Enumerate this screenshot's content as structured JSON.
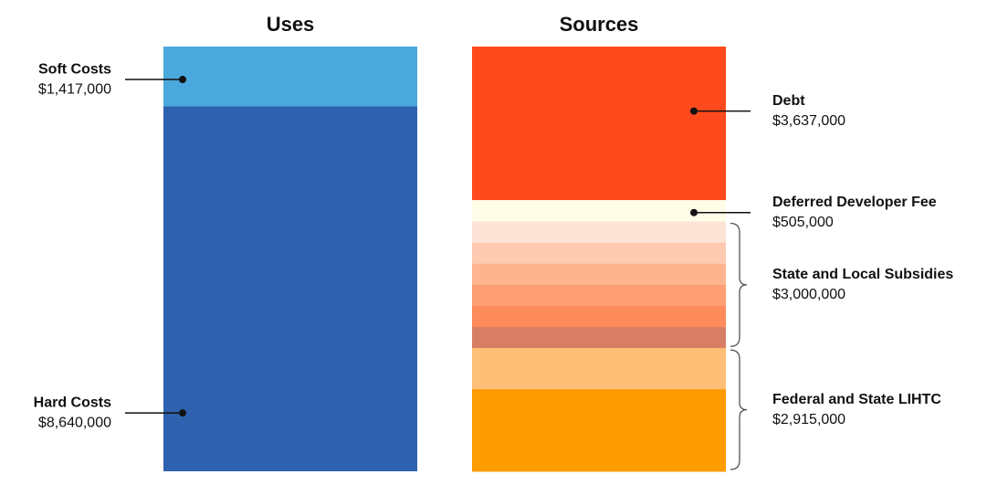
{
  "chart_data": {
    "type": "stacked-bar",
    "categories": [
      "Uses",
      "Sources"
    ],
    "series": [
      {
        "name": "Soft Costs",
        "color": "#4aa8dc",
        "values": [
          1417000,
          null
        ],
        "value_labels": [
          "$1,417,000",
          null
        ]
      },
      {
        "name": "Hard Costs",
        "color": "#2f62ae",
        "values": [
          8640000,
          null
        ],
        "value_labels": [
          "$8,640,000",
          null
        ]
      },
      {
        "name": "Debt",
        "color": "#fe4a1c",
        "values": [
          null,
          3637000
        ],
        "value_labels": [
          null,
          "$3,637,000"
        ]
      },
      {
        "name": "Deferred Developer Fee",
        "color": "#fffde8",
        "values": [
          null,
          505000
        ],
        "value_labels": [
          null,
          "$505,000"
        ]
      },
      {
        "name": "State and Local Subsidies",
        "color": [
          "#fde3d6",
          "#fecab1",
          "#feb58f",
          "#fd9e73",
          "#fd8b5c",
          "#d87e64"
        ],
        "values": [
          null,
          3000000
        ],
        "value_labels": [
          null,
          "$3,000,000"
        ]
      },
      {
        "name": "Federal and State LIHTC",
        "color": [
          "#fec077",
          "#fe9c03",
          "#fe9c03"
        ],
        "values": [
          null,
          2915000
        ],
        "value_labels": [
          null,
          "$2,915,000"
        ]
      }
    ]
  }
}
